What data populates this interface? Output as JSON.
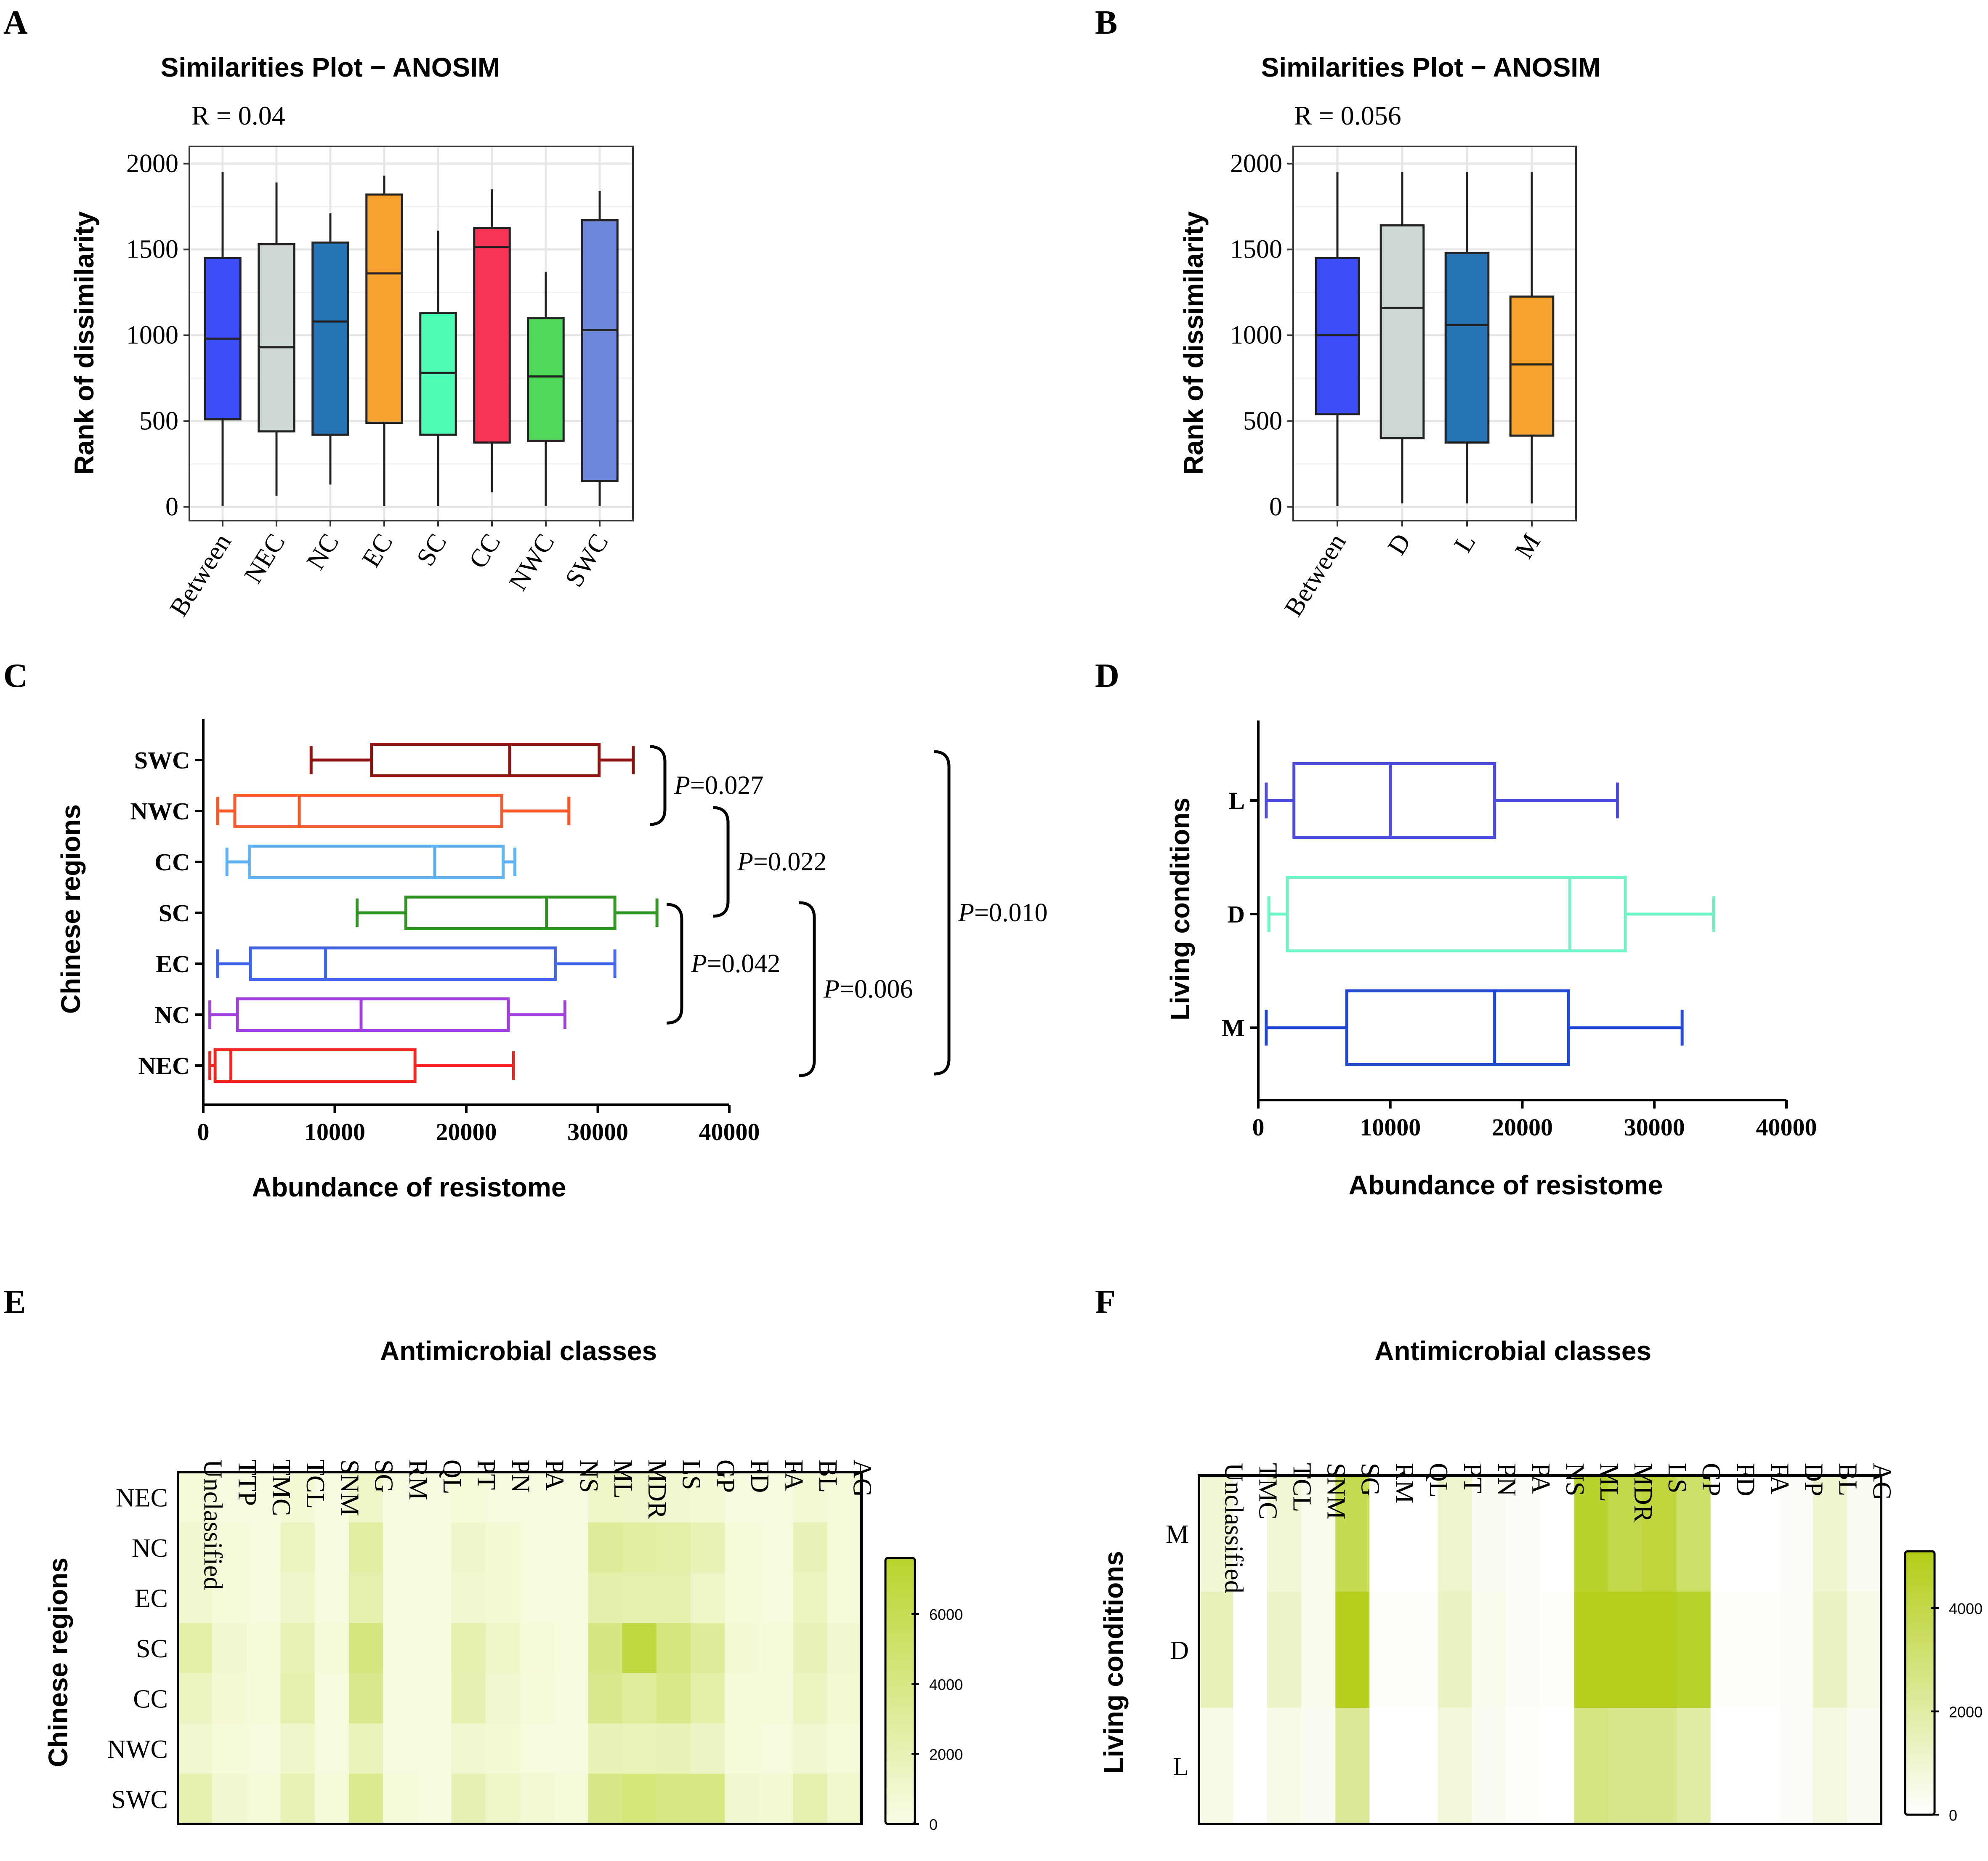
{
  "panels": {
    "A": "A",
    "B": "B",
    "C": "C",
    "D": "D",
    "E": "E",
    "F": "F"
  },
  "chart_data": [
    {
      "id": "A",
      "type": "box",
      "title": "Similarities Plot − ANOSIM",
      "stat_label": "R = 0.04",
      "xlabel": "",
      "ylabel": "Rank of dissimilarity",
      "ylim": [
        -80,
        2100
      ],
      "yticks": [
        0,
        500,
        1000,
        1500,
        2000
      ],
      "grid": true,
      "categories": [
        "Between",
        "NEC",
        "NC",
        "EC",
        "SC",
        "CC",
        "NWC",
        "SWC"
      ],
      "colors": [
        "#3d4df6",
        "#cdd7d6",
        "#2673b5",
        "#f6a22e",
        "#4dfbb4",
        "#f73559",
        "#4fda5b",
        "#6c86dc"
      ],
      "boxes": [
        {
          "min": 5,
          "q1": 510,
          "median": 980,
          "q3": 1450,
          "max": 1950
        },
        {
          "min": 65,
          "q1": 440,
          "median": 930,
          "q3": 1530,
          "max": 1890
        },
        {
          "min": 130,
          "q1": 420,
          "median": 1080,
          "q3": 1540,
          "max": 1710
        },
        {
          "min": 5,
          "q1": 490,
          "median": 1360,
          "q3": 1820,
          "max": 1930
        },
        {
          "min": 5,
          "q1": 420,
          "median": 780,
          "q3": 1130,
          "max": 1610
        },
        {
          "min": 85,
          "q1": 375,
          "median": 1515,
          "q3": 1625,
          "max": 1850
        },
        {
          "min": 5,
          "q1": 385,
          "median": 760,
          "q3": 1100,
          "max": 1370
        },
        {
          "min": 5,
          "q1": 150,
          "median": 1030,
          "q3": 1670,
          "max": 1840
        }
      ]
    },
    {
      "id": "B",
      "type": "box",
      "title": "Similarities Plot − ANOSIM",
      "stat_label": "R = 0.056",
      "xlabel": "",
      "ylabel": "Rank of dissimilarity",
      "ylim": [
        -80,
        2100
      ],
      "yticks": [
        0,
        500,
        1000,
        1500,
        2000
      ],
      "grid": true,
      "categories": [
        "Between",
        "D",
        "L",
        "M"
      ],
      "colors": [
        "#3d4df6",
        "#cdd7d6",
        "#2673b5",
        "#f6a22e"
      ],
      "boxes": [
        {
          "min": 5,
          "q1": 540,
          "median": 1000,
          "q3": 1450,
          "max": 1950
        },
        {
          "min": 20,
          "q1": 400,
          "median": 1160,
          "q3": 1640,
          "max": 1950
        },
        {
          "min": 20,
          "q1": 375,
          "median": 1060,
          "q3": 1480,
          "max": 1950
        },
        {
          "min": 20,
          "q1": 415,
          "median": 830,
          "q3": 1225,
          "max": 1950
        }
      ]
    },
    {
      "id": "C",
      "type": "box",
      "orientation": "horizontal",
      "xlabel": "Abundance of resistome",
      "ylabel": "Chinese regions",
      "xlim": [
        0,
        40000
      ],
      "xticks": [
        0,
        10000,
        20000,
        30000,
        40000
      ],
      "categories": [
        "SWC",
        "NWC",
        "CC",
        "SC",
        "EC",
        "NC",
        "NEC"
      ],
      "colors": [
        "#8e1414",
        "#f55a2c",
        "#5fb1f1",
        "#2e9422",
        "#4466ea",
        "#a23fde",
        "#f1251f"
      ],
      "boxes": [
        {
          "min": 8200,
          "q1": 12800,
          "median": 23300,
          "q3": 30100,
          "max": 32700
        },
        {
          "min": 1100,
          "q1": 2400,
          "median": 7300,
          "q3": 22700,
          "max": 27800
        },
        {
          "min": 1800,
          "q1": 3500,
          "median": 17600,
          "q3": 22800,
          "max": 23700
        },
        {
          "min": 11700,
          "q1": 15400,
          "median": 26100,
          "q3": 31300,
          "max": 34500
        },
        {
          "min": 1100,
          "q1": 3600,
          "median": 9300,
          "q3": 26800,
          "max": 31300
        },
        {
          "min": 500,
          "q1": 2600,
          "median": 12000,
          "q3": 23200,
          "max": 27500
        },
        {
          "min": 500,
          "q1": 900,
          "median": 2100,
          "q3": 16100,
          "max": 23600
        }
      ],
      "comparisons": [
        {
          "between": [
            "SWC",
            "NWC"
          ],
          "label": "=0.027"
        },
        {
          "between": [
            "NWC",
            "SC"
          ],
          "label": "=0.022"
        },
        {
          "between": [
            "SC",
            "NC"
          ],
          "label": "=0.042"
        },
        {
          "between": [
            "SC",
            "NEC"
          ],
          "label": "=0.006"
        },
        {
          "between": [
            "SWC",
            "NEC"
          ],
          "label": "=0.010"
        }
      ],
      "p_symbol": "P"
    },
    {
      "id": "D",
      "type": "box",
      "orientation": "horizontal",
      "xlabel": "Abundance of resistome",
      "ylabel": "Living conditions",
      "xlim": [
        0,
        40000
      ],
      "xticks": [
        0,
        10000,
        20000,
        30000,
        40000
      ],
      "categories": [
        "L",
        "D",
        "M"
      ],
      "colors": [
        "#4e4be3",
        "#6ff3c6",
        "#2047d8"
      ],
      "boxes": [
        {
          "min": 600,
          "q1": 2700,
          "median": 10000,
          "q3": 17900,
          "max": 27200
        },
        {
          "min": 800,
          "q1": 2200,
          "median": 23600,
          "q3": 27800,
          "max": 34500
        },
        {
          "min": 600,
          "q1": 6700,
          "median": 17900,
          "q3": 23500,
          "max": 32100
        }
      ]
    },
    {
      "id": "E",
      "type": "heatmap",
      "title": "Antimicrobial classes",
      "ylabel": "Chinese regions",
      "columns": [
        "Unclassified",
        "TTP",
        "TMC",
        "TCL",
        "SNM",
        "SG",
        "RM",
        "QL",
        "PT",
        "PN",
        "PA",
        "NS",
        "ML",
        "MDR",
        "LS",
        "GP",
        "FD",
        "FA",
        "BL",
        "AG"
      ],
      "rows": [
        "NEC",
        "NC",
        "EC",
        "SC",
        "CC",
        "NWC",
        "SWC"
      ],
      "colorbar": {
        "min": 0,
        "max": 7600,
        "ticks": [
          0,
          2000,
          4000,
          6000
        ],
        "low": "#fafce6",
        "high": "#b9d42c"
      },
      "values": [
        [
          600,
          300,
          300,
          700,
          300,
          1300,
          300,
          300,
          600,
          400,
          300,
          300,
          1300,
          1200,
          900,
          700,
          400,
          400,
          700,
          500
        ],
        [
          1000,
          500,
          400,
          1500,
          400,
          2800,
          300,
          300,
          1200,
          700,
          400,
          300,
          3200,
          2800,
          2600,
          2000,
          500,
          400,
          1900,
          600
        ],
        [
          900,
          500,
          400,
          1200,
          400,
          2300,
          300,
          300,
          1000,
          700,
          400,
          300,
          2400,
          2300,
          2300,
          1300,
          500,
          400,
          1600,
          600
        ],
        [
          2600,
          900,
          500,
          2000,
          500,
          4200,
          400,
          300,
          2300,
          1300,
          600,
          400,
          4100,
          6800,
          4200,
          3200,
          700,
          500,
          1900,
          1000
        ],
        [
          1500,
          800,
          500,
          2300,
          400,
          3600,
          400,
          300,
          2200,
          900,
          500,
          400,
          3600,
          3100,
          3800,
          2500,
          600,
          500,
          1500,
          800
        ],
        [
          900,
          500,
          400,
          1200,
          400,
          1700,
          300,
          300,
          1000,
          700,
          400,
          300,
          1900,
          1800,
          1900,
          1400,
          500,
          400,
          1000,
          600
        ],
        [
          2300,
          900,
          600,
          2000,
          600,
          3500,
          500,
          400,
          2100,
          1300,
          800,
          600,
          3900,
          4400,
          4000,
          4000,
          900,
          700,
          2300,
          1100
        ]
      ]
    },
    {
      "id": "F",
      "type": "heatmap",
      "title": "Antimicrobial classes",
      "ylabel": "Living conditions",
      "columns": [
        "Unclassified",
        "TMC",
        "TCL",
        "SNM",
        "SG",
        "RM",
        "QL",
        "PT",
        "PN",
        "PA",
        "NS",
        "ML",
        "MDR",
        "LS",
        "GP",
        "FD",
        "FA",
        "DP",
        "BL",
        "AG"
      ],
      "rows": [
        "M",
        "D",
        "L"
      ],
      "colorbar": {
        "min": 0,
        "max": 5100,
        "ticks": [
          0,
          2000,
          4000
        ],
        "low": "#ffffff",
        "high": "#b3cd16"
      },
      "values": [
        [
          900,
          0,
          900,
          400,
          3800,
          0,
          0,
          1100,
          300,
          200,
          0,
          4600,
          4000,
          4300,
          3300,
          0,
          0,
          200,
          1000,
          300
        ],
        [
          1500,
          0,
          1200,
          400,
          5000,
          100,
          100,
          1300,
          400,
          200,
          100,
          5000,
          5000,
          5000,
          4600,
          100,
          100,
          200,
          1300,
          500
        ],
        [
          600,
          0,
          500,
          300,
          2300,
          0,
          0,
          800,
          300,
          100,
          0,
          2800,
          2500,
          2500,
          2000,
          0,
          0,
          200,
          700,
          300
        ]
      ]
    }
  ]
}
